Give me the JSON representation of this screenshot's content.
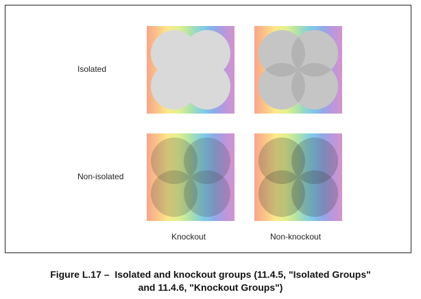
{
  "figure": {
    "row_labels": [
      "Isolated",
      "Non-isolated"
    ],
    "column_labels": [
      "Knockout",
      "Non-knockout"
    ],
    "caption_line1": "Figure L.17 –  Isolated and knockout groups (11.4.5, \"Isolated Groups\"",
    "caption_line2": "and 11.4.6, \"Knockout Groups\")"
  },
  "colors": {
    "isolated_circle_fill": "#d9d9d9",
    "overlap_shade": "#4d4d4d",
    "border": "#222222"
  }
}
